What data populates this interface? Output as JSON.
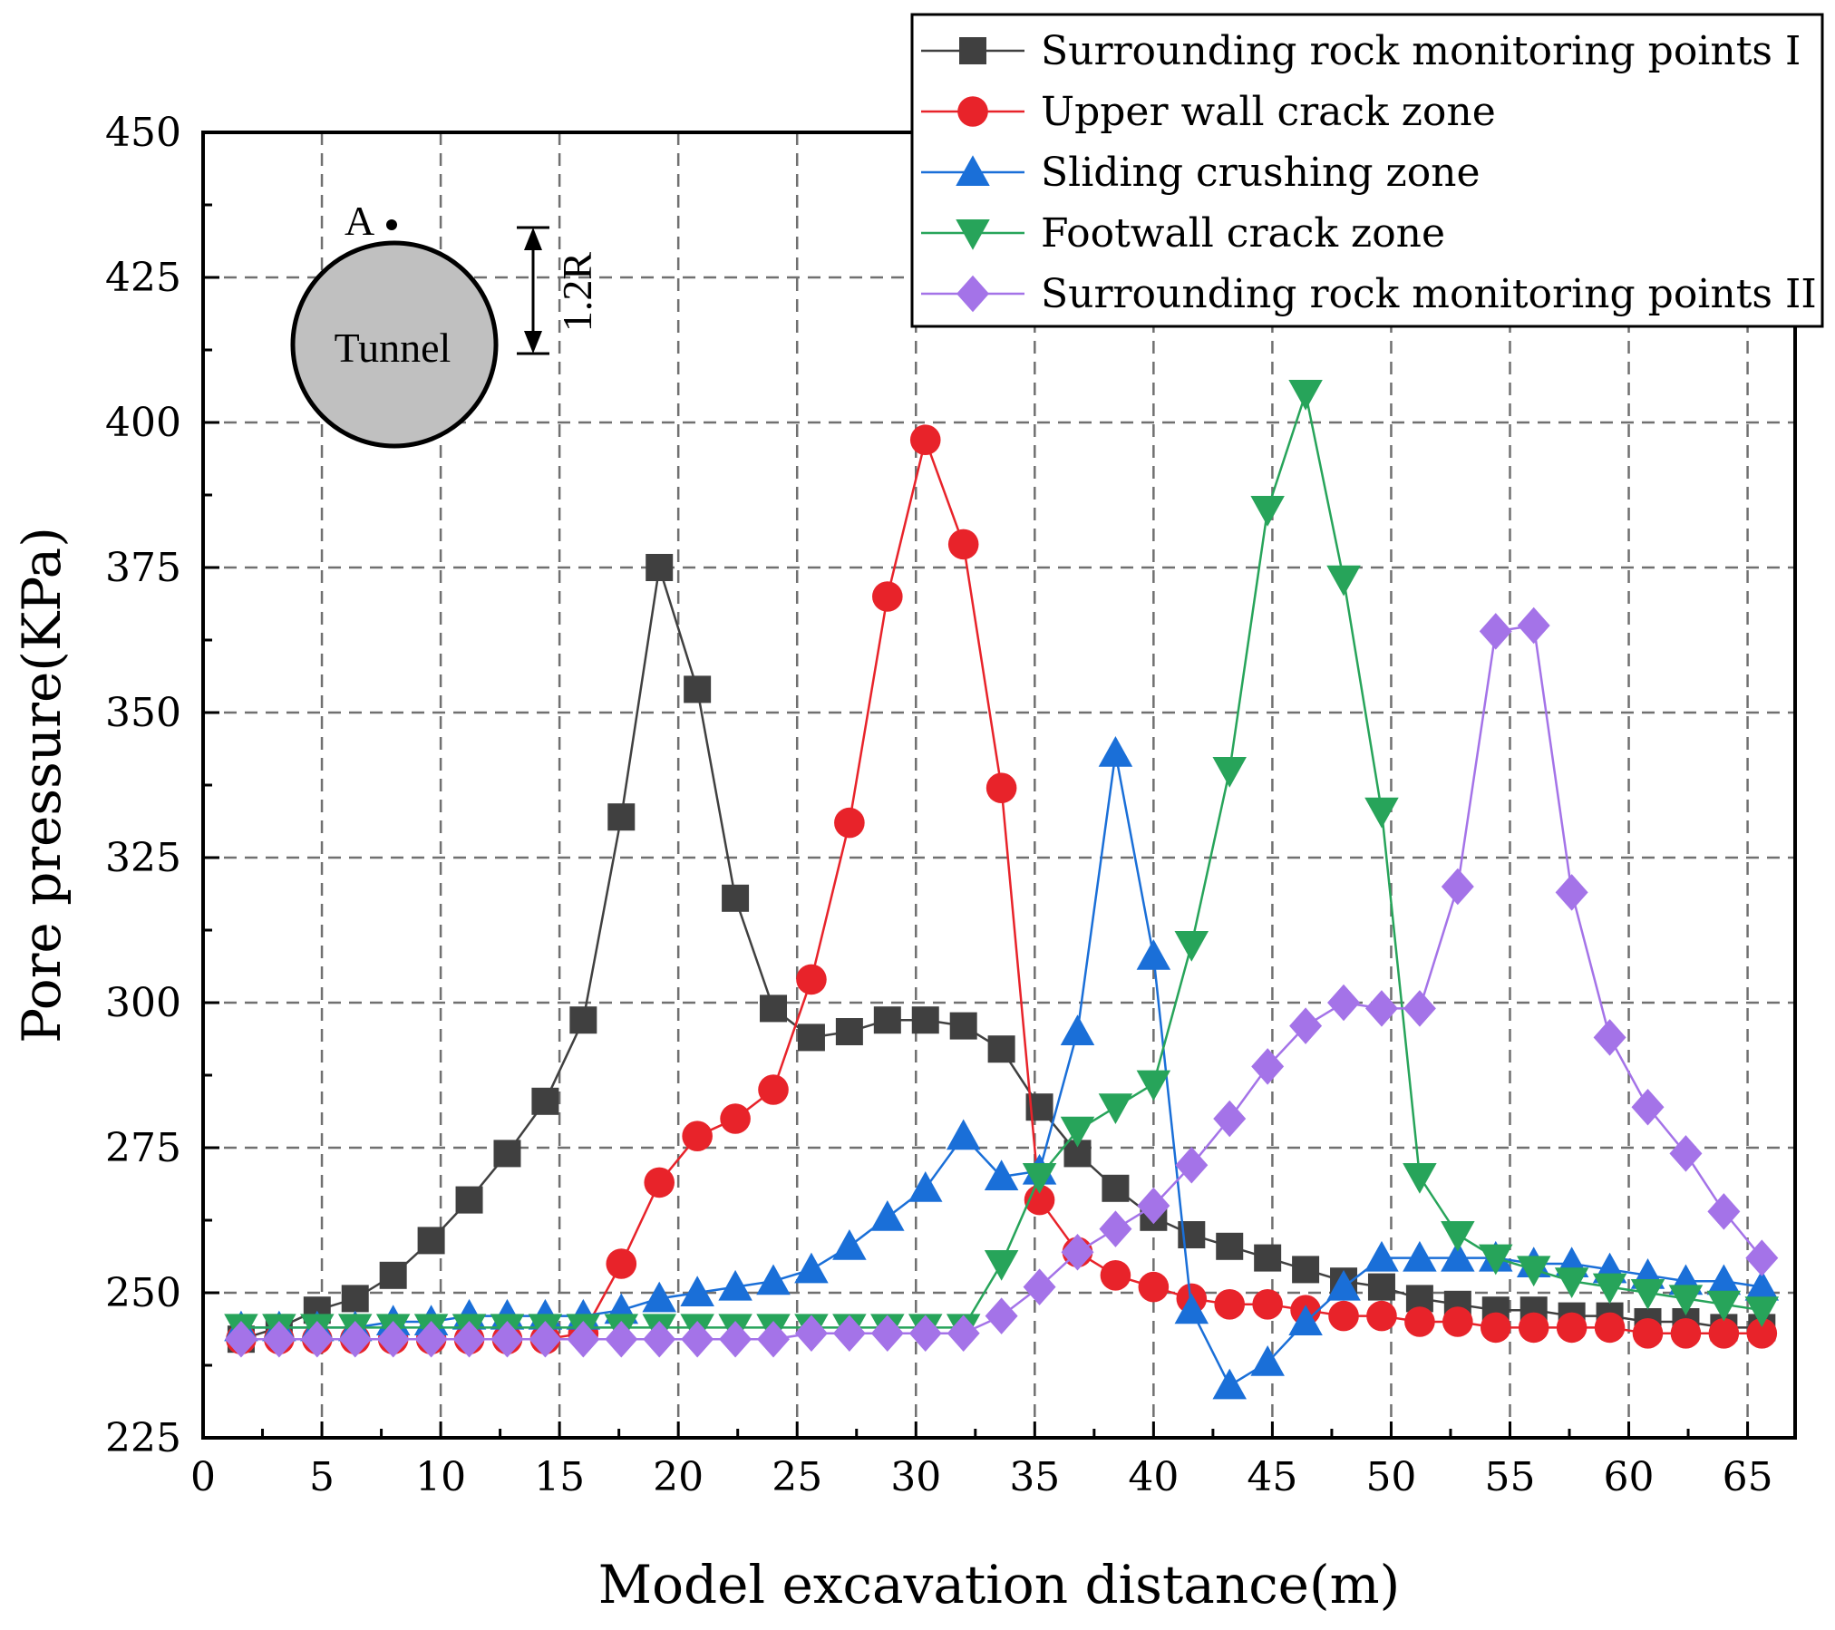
{
  "chart_data": {
    "type": "line",
    "title": "",
    "xlabel": "Model excavation distance(m)",
    "ylabel": "Pore pressure(KPa)",
    "xlim": [
      0,
      67
    ],
    "ylim": [
      225,
      450
    ],
    "xticks": [
      0,
      5,
      10,
      15,
      20,
      25,
      30,
      35,
      40,
      45,
      50,
      55,
      60,
      65
    ],
    "yticks": [
      225,
      250,
      275,
      300,
      325,
      350,
      375,
      400,
      425,
      450
    ],
    "grid": true,
    "legend_position": "top-right",
    "x": [
      1.6,
      3.2,
      4.8,
      6.4,
      8.0,
      9.6,
      11.2,
      12.8,
      14.4,
      16.0,
      17.6,
      19.2,
      20.8,
      22.4,
      24.0,
      25.6,
      27.2,
      28.8,
      30.4,
      32.0,
      33.6,
      35.2,
      36.8,
      38.4,
      40.0,
      41.6,
      43.2,
      44.8,
      46.4,
      48.0,
      49.6,
      51.2,
      52.8,
      54.4,
      56.0,
      57.6,
      59.2,
      60.8,
      62.4,
      64.0,
      65.6
    ],
    "series": [
      {
        "name": "Surrounding rock monitoring points I",
        "color": "#404040",
        "marker": "square",
        "values": [
          242,
          244,
          247,
          249,
          253,
          259,
          266,
          274,
          283,
          297,
          332,
          375,
          354,
          318,
          299,
          294,
          295,
          297,
          297,
          296,
          292,
          282,
          274,
          268,
          263,
          260,
          258,
          256,
          254,
          252,
          251,
          249,
          248,
          247,
          247,
          246,
          246,
          245,
          245,
          244,
          244
        ]
      },
      {
        "name": "Upper wall crack zone",
        "color": "#e8232a",
        "marker": "circle",
        "values": [
          242,
          242,
          242,
          242,
          242,
          242,
          242,
          242,
          242,
          243,
          255,
          269,
          277,
          280,
          285,
          304,
          331,
          370,
          397,
          379,
          337,
          266,
          257,
          253,
          251,
          249,
          248,
          248,
          247,
          246,
          246,
          245,
          245,
          244,
          244,
          244,
          244,
          243,
          243,
          243,
          243
        ]
      },
      {
        "name": "Sliding crushing zone",
        "color": "#1a6fd8",
        "marker": "triangle-up",
        "values": [
          244,
          244,
          244,
          244,
          245,
          245,
          246,
          246,
          246,
          246,
          247,
          249,
          250,
          251,
          252,
          254,
          258,
          263,
          268,
          277,
          270,
          271,
          295,
          343,
          308,
          247,
          234,
          238,
          245,
          251,
          256,
          256,
          256,
          256,
          255,
          255,
          254,
          253,
          252,
          252,
          251
        ]
      },
      {
        "name": "Footwall crack zone",
        "color": "#27a45a",
        "marker": "triangle-down",
        "values": [
          244,
          244,
          244,
          244,
          244,
          244,
          244,
          244,
          244,
          244,
          244,
          244,
          244,
          244,
          244,
          244,
          244,
          244,
          244,
          244,
          255,
          270,
          278,
          282,
          286,
          310,
          340,
          385,
          405,
          373,
          333,
          270,
          260,
          256,
          254,
          252,
          251,
          250,
          249,
          248,
          247
        ]
      },
      {
        "name": "Surrounding rock monitoring points II",
        "color": "#a473e8",
        "marker": "diamond",
        "values": [
          242,
          242,
          242,
          242,
          242,
          242,
          242,
          242,
          242,
          242,
          242,
          242,
          242,
          242,
          242,
          243,
          243,
          243,
          243,
          243,
          246,
          251,
          257,
          261,
          265,
          272,
          280,
          289,
          296,
          300,
          299,
          299,
          320,
          364,
          365,
          319,
          294,
          282,
          274,
          264,
          256
        ]
      }
    ],
    "annotations": {
      "point_label": "A",
      "circle_label": "Tunnel",
      "dimension_label": "1.2R"
    }
  }
}
